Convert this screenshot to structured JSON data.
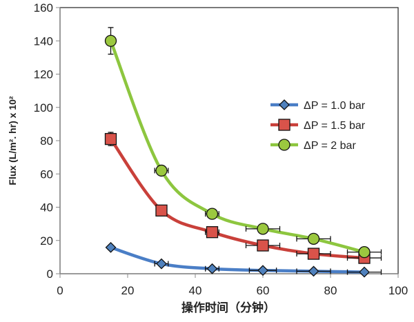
{
  "chart_data": {
    "type": "line",
    "title": "",
    "xlabel": "操作时间（分钟）",
    "ylabel": "Flux (L/m². hr) x 10²",
    "xlim": [
      0,
      100
    ],
    "ylim": [
      0,
      160
    ],
    "xticks": [
      0,
      20,
      40,
      60,
      80,
      100
    ],
    "yticks": [
      0,
      20,
      40,
      60,
      80,
      100,
      120,
      140,
      160
    ],
    "grid": false,
    "legend_position": "right",
    "x": [
      15,
      30,
      45,
      60,
      75,
      90
    ],
    "series": [
      {
        "name": "ΔP = 1.0 bar",
        "color": "#4A7EC6",
        "marker": "diamond",
        "marker_color": "#4F81BD",
        "values": [
          15.8,
          6,
          3,
          2,
          1.5,
          1
        ],
        "yerr": [
          0,
          0,
          0,
          0,
          0,
          0
        ],
        "xerr": [
          0,
          2,
          2,
          4,
          5,
          5
        ]
      },
      {
        "name": "ΔP = 1.5 bar",
        "color": "#C9403A",
        "marker": "square",
        "marker_color": "#D9534A",
        "values": [
          81,
          38,
          25,
          17,
          12,
          9.5
        ],
        "yerr": [
          4,
          0,
          0,
          0,
          0,
          0
        ],
        "xerr": [
          0,
          0,
          2,
          5,
          5,
          5
        ]
      },
      {
        "name": "ΔP = 2 bar",
        "color": "#8DC63F",
        "marker": "circle",
        "marker_color": "#9BC83F",
        "values": [
          140,
          62,
          36,
          27,
          21,
          13
        ],
        "yerr": [
          8,
          0,
          0,
          0,
          0,
          0
        ],
        "xerr": [
          0,
          2,
          2,
          5,
          5,
          5
        ]
      }
    ]
  }
}
